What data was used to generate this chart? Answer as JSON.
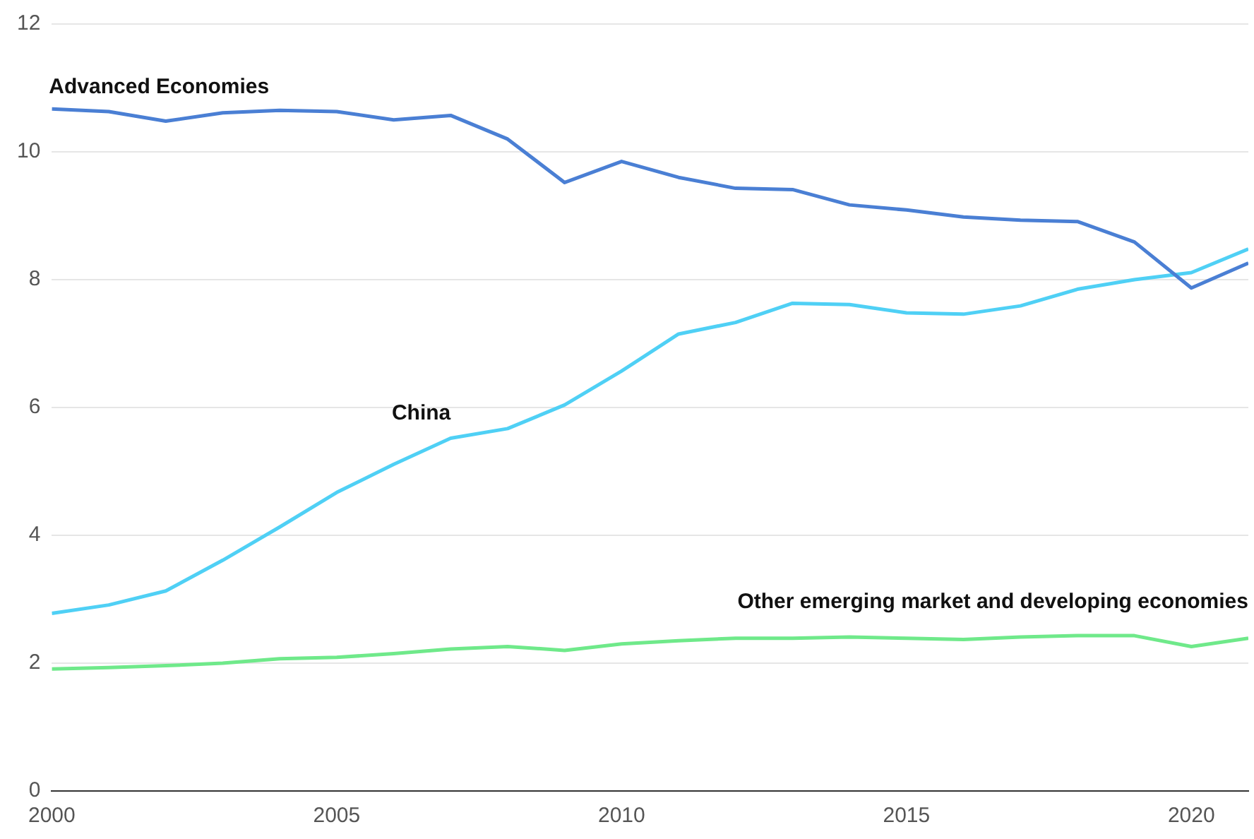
{
  "chart_data": {
    "type": "line",
    "x": [
      2000,
      2001,
      2002,
      2003,
      2004,
      2005,
      2006,
      2007,
      2008,
      2009,
      2010,
      2011,
      2012,
      2013,
      2014,
      2015,
      2016,
      2017,
      2018,
      2019,
      2020,
      2021
    ],
    "series": [
      {
        "name": "Advanced Economies",
        "color": "#4a7fd4",
        "values": [
          10.67,
          10.63,
          10.48,
          10.61,
          10.65,
          10.63,
          10.5,
          10.57,
          10.2,
          9.52,
          9.85,
          9.6,
          9.43,
          9.41,
          9.17,
          9.09,
          8.98,
          8.93,
          8.91,
          8.59,
          7.87,
          8.26
        ]
      },
      {
        "name": "China",
        "color": "#4fd0f5",
        "values": [
          2.78,
          2.91,
          3.13,
          3.61,
          4.13,
          4.67,
          5.11,
          5.52,
          5.67,
          6.04,
          6.57,
          7.15,
          7.33,
          7.63,
          7.61,
          7.48,
          7.46,
          7.59,
          7.85,
          8.0,
          8.11,
          8.48
        ]
      },
      {
        "name": "Other emerging market and developing economies",
        "color": "#6fe98a",
        "values": [
          1.91,
          1.93,
          1.96,
          2.0,
          2.07,
          2.09,
          2.15,
          2.22,
          2.26,
          2.2,
          2.3,
          2.35,
          2.39,
          2.39,
          2.41,
          2.39,
          2.37,
          2.41,
          2.43,
          2.43,
          2.26,
          2.39
        ]
      }
    ],
    "xlim": [
      2000,
      2021
    ],
    "xticks": [
      2000,
      2005,
      2010,
      2015,
      2020
    ],
    "ylim": [
      0,
      12
    ],
    "yticks": [
      0,
      2,
      4,
      6,
      8,
      10,
      12
    ],
    "grid": "y",
    "legend": false,
    "marker": "none",
    "line_style": "solid"
  }
}
